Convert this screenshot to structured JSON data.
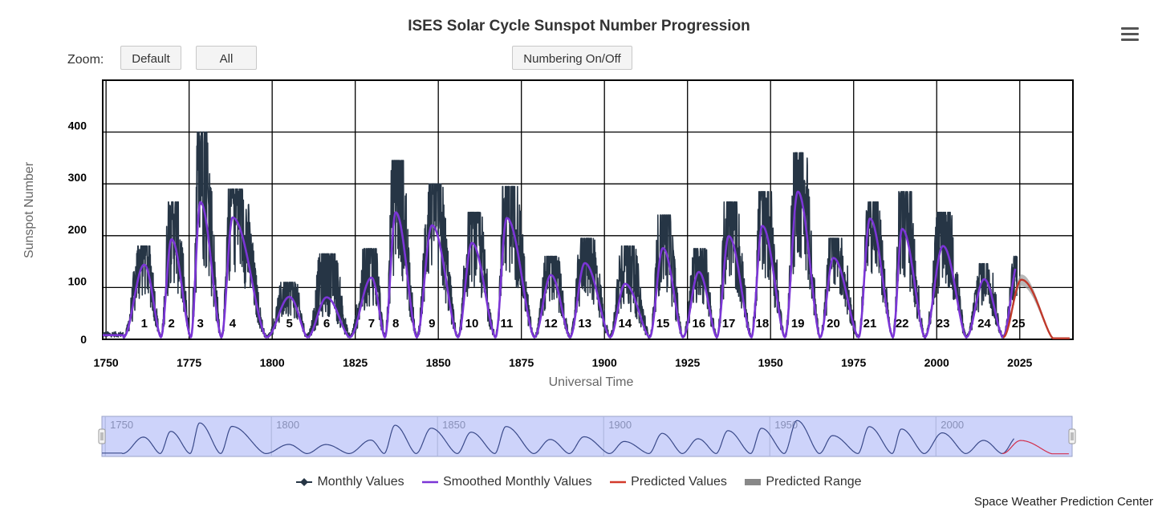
{
  "header": {
    "title": "ISES Solar Cycle Sunspot Number Progression",
    "zoom_label": "Zoom:",
    "zoom_default": "Default",
    "zoom_all": "All",
    "numbering_toggle": "Numbering On/Off",
    "menu_icon": "hamburger-menu-icon"
  },
  "credit": "Space Weather Prediction Center",
  "legend": [
    {
      "label": "Monthly Values",
      "color": "#263545",
      "icon": "diamond-line-icon"
    },
    {
      "label": "Smoothed Monthly Values",
      "color": "#7b35d6",
      "icon": "line-icon"
    },
    {
      "label": "Predicted Values",
      "color": "#d33a2b",
      "icon": "line-icon"
    },
    {
      "label": "Predicted Range",
      "color": "#888888",
      "icon": "bar-icon"
    }
  ],
  "colors": {
    "monthly": "#263545",
    "smoothed": "#7b35d6",
    "predicted": "#c0392b",
    "range": "#9a9a9a",
    "navigator_bg": "#cdd3fa",
    "navigator_line": "#3a4a8a"
  },
  "chart_data": {
    "type": "line",
    "title": "ISES Solar Cycle Sunspot Number Progression",
    "xlabel": "Universal Time",
    "ylabel": "Sunspot Number",
    "xlim": [
      1749,
      2041
    ],
    "ylim": [
      0,
      500
    ],
    "x_ticks": [
      "1750",
      "1775",
      "1800",
      "1825",
      "1850",
      "1875",
      "1900",
      "1925",
      "1950",
      "1975",
      "2000",
      "2025"
    ],
    "y_ticks": [
      "0",
      "100",
      "200",
      "300",
      "400"
    ],
    "grid": true,
    "legend_position": "bottom",
    "navigator_labels": [
      "1750",
      "1800",
      "1850",
      "1900",
      "1950",
      "2000"
    ],
    "cycles": [
      {
        "number": "1",
        "min": 1755.2,
        "max": 1761.5,
        "smoothed_max": 144,
        "monthly_peak": 180
      },
      {
        "number": "2",
        "min": 1766.5,
        "max": 1769.7,
        "smoothed_max": 193,
        "monthly_peak": 265
      },
      {
        "number": "3",
        "min": 1775.5,
        "max": 1778.4,
        "smoothed_max": 265,
        "monthly_peak": 400
      },
      {
        "number": "4",
        "min": 1784.7,
        "max": 1788.1,
        "smoothed_max": 235,
        "monthly_peak": 290
      },
      {
        "number": "5",
        "min": 1798.3,
        "max": 1805.2,
        "smoothed_max": 82,
        "monthly_peak": 110
      },
      {
        "number": "6",
        "min": 1810.6,
        "max": 1816.4,
        "smoothed_max": 81,
        "monthly_peak": 165
      },
      {
        "number": "7",
        "min": 1823.3,
        "max": 1829.9,
        "smoothed_max": 119,
        "monthly_peak": 175
      },
      {
        "number": "8",
        "min": 1833.9,
        "max": 1837.2,
        "smoothed_max": 245,
        "monthly_peak": 345
      },
      {
        "number": "9",
        "min": 1843.5,
        "max": 1848.1,
        "smoothed_max": 220,
        "monthly_peak": 300
      },
      {
        "number": "10",
        "min": 1855.9,
        "max": 1860.1,
        "smoothed_max": 186,
        "monthly_peak": 245
      },
      {
        "number": "11",
        "min": 1867.2,
        "max": 1870.6,
        "smoothed_max": 234,
        "monthly_peak": 295
      },
      {
        "number": "12",
        "min": 1878.9,
        "max": 1883.9,
        "smoothed_max": 124,
        "monthly_peak": 160
      },
      {
        "number": "13",
        "min": 1889.6,
        "max": 1894.1,
        "smoothed_max": 147,
        "monthly_peak": 195
      },
      {
        "number": "14",
        "min": 1901.7,
        "max": 1906.2,
        "smoothed_max": 107,
        "monthly_peak": 180
      },
      {
        "number": "15",
        "min": 1913.6,
        "max": 1917.6,
        "smoothed_max": 176,
        "monthly_peak": 240
      },
      {
        "number": "16",
        "min": 1923.6,
        "max": 1928.4,
        "smoothed_max": 130,
        "monthly_peak": 175
      },
      {
        "number": "17",
        "min": 1933.8,
        "max": 1937.4,
        "smoothed_max": 199,
        "monthly_peak": 265
      },
      {
        "number": "18",
        "min": 1944.2,
        "max": 1947.5,
        "smoothed_max": 219,
        "monthly_peak": 285
      },
      {
        "number": "19",
        "min": 1954.3,
        "max": 1958.2,
        "smoothed_max": 285,
        "monthly_peak": 360
      },
      {
        "number": "20",
        "min": 1964.9,
        "max": 1968.9,
        "smoothed_max": 157,
        "monthly_peak": 195
      },
      {
        "number": "21",
        "min": 1976.5,
        "max": 1979.9,
        "smoothed_max": 233,
        "monthly_peak": 265
      },
      {
        "number": "22",
        "min": 1986.8,
        "max": 1989.6,
        "smoothed_max": 213,
        "monthly_peak": 285
      },
      {
        "number": "23",
        "min": 1996.4,
        "max": 2001.9,
        "smoothed_max": 180,
        "monthly_peak": 245
      },
      {
        "number": "24",
        "min": 2008.9,
        "max": 2014.3,
        "smoothed_max": 116,
        "monthly_peak": 146
      },
      {
        "number": "25",
        "min": 2019.9,
        "max": 2024.6,
        "smoothed_max": 150,
        "monthly_peak": 160
      }
    ],
    "observed_end": 2024.2,
    "prediction": {
      "start": 2020.0,
      "peak_year": 2025.5,
      "peak_value": 115,
      "range_upper": 125,
      "range_lower": 105,
      "end": 2040.0
    }
  }
}
